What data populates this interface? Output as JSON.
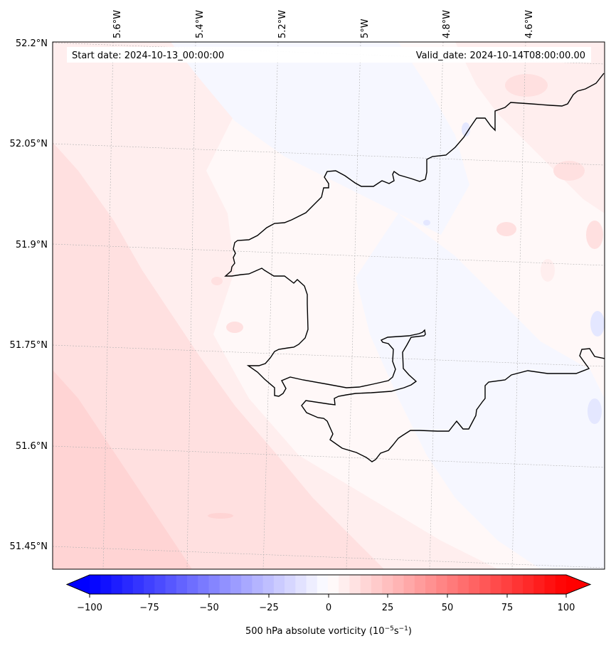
{
  "map": {
    "start_label": "Start date: 2024-10-13_00:00:00",
    "valid_label": "Valid_date: 2024-10-14T08:00:00.00",
    "lon_labels": [
      "5.6°W",
      "5.4°W",
      "5.2°W",
      "5°W",
      "4.8°W",
      "4.6°W"
    ],
    "lat_labels": [
      "52.2°N",
      "52.05°N",
      "51.9°N",
      "51.75°N",
      "51.6°N",
      "51.45°N"
    ],
    "coastline_color": "#000000",
    "gridline_color": "#b0b0b0"
  },
  "colorbar": {
    "ticks": [
      "−100",
      "−75",
      "−50",
      "−25",
      "0",
      "25",
      "50",
      "75",
      "100"
    ],
    "label_main": "500 hPa absolute vorticity (10",
    "label_exp1": "−5",
    "label_mid": "s",
    "label_exp2": "−1",
    "label_close": ")",
    "min_color": "#0000ff",
    "mid_color": "#ffffff",
    "max_color": "#ff0000",
    "levels": 44
  },
  "field_colors": {
    "strong_positive": "#ffd4d4",
    "positive": "#ffe0e0",
    "weak_positive": "#ffeeee",
    "near_zero": "#fff8f8",
    "weak_negative": "#f6f7ff",
    "negative": "#e4e7ff"
  }
}
